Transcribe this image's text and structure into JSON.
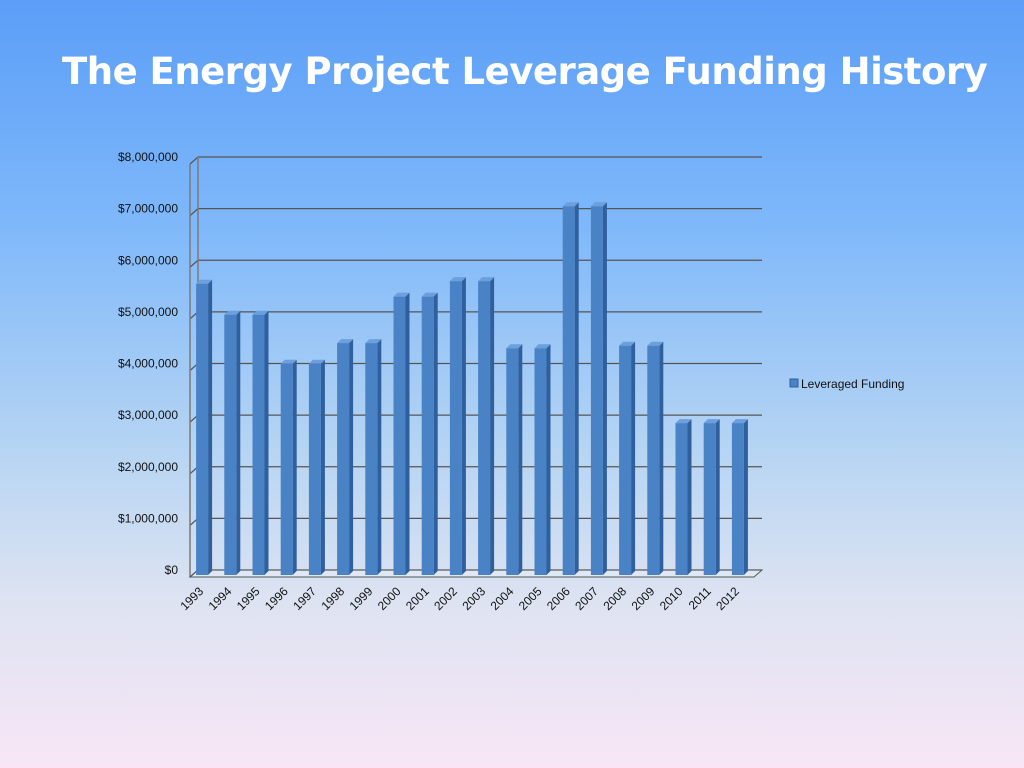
{
  "slide": {
    "title": "The Energy Project Leverage Funding History"
  },
  "colors": {
    "bar_front": "#4a82c6",
    "bar_side": "#2f5f9c",
    "bar_top": "#6c9fdb",
    "gridline": "#555555",
    "wall_left": "#7a7a7a"
  },
  "chart_data": {
    "type": "bar",
    "title": "",
    "xlabel": "",
    "ylabel": "",
    "ylim": [
      0,
      8000000
    ],
    "y_ticks": [
      {
        "value": 0,
        "label": "$0"
      },
      {
        "value": 1000000,
        "label": "$1,000,000"
      },
      {
        "value": 2000000,
        "label": "$2,000,000"
      },
      {
        "value": 3000000,
        "label": "$3,000,000"
      },
      {
        "value": 4000000,
        "label": "$4,000,000"
      },
      {
        "value": 5000000,
        "label": "$5,000,000"
      },
      {
        "value": 6000000,
        "label": "$6,000,000"
      },
      {
        "value": 7000000,
        "label": "$7,000,000"
      },
      {
        "value": 8000000,
        "label": "$8,000,000"
      }
    ],
    "grid": true,
    "legend_position": "right",
    "categories": [
      "1993",
      "1994",
      "1995",
      "1996",
      "1997",
      "1998",
      "1999",
      "2000",
      "2001",
      "2002",
      "2003",
      "2004",
      "2005",
      "2006",
      "2007",
      "2008",
      "2009",
      "2010",
      "2011",
      "2012"
    ],
    "series": [
      {
        "name": "Leveraged Funding",
        "values": [
          5700000,
          5100000,
          5100000,
          4150000,
          4150000,
          4550000,
          4550000,
          5450000,
          5450000,
          5750000,
          5750000,
          4450000,
          4450000,
          7200000,
          7200000,
          4500000,
          4500000,
          3000000,
          3000000,
          3000000
        ]
      }
    ]
  }
}
